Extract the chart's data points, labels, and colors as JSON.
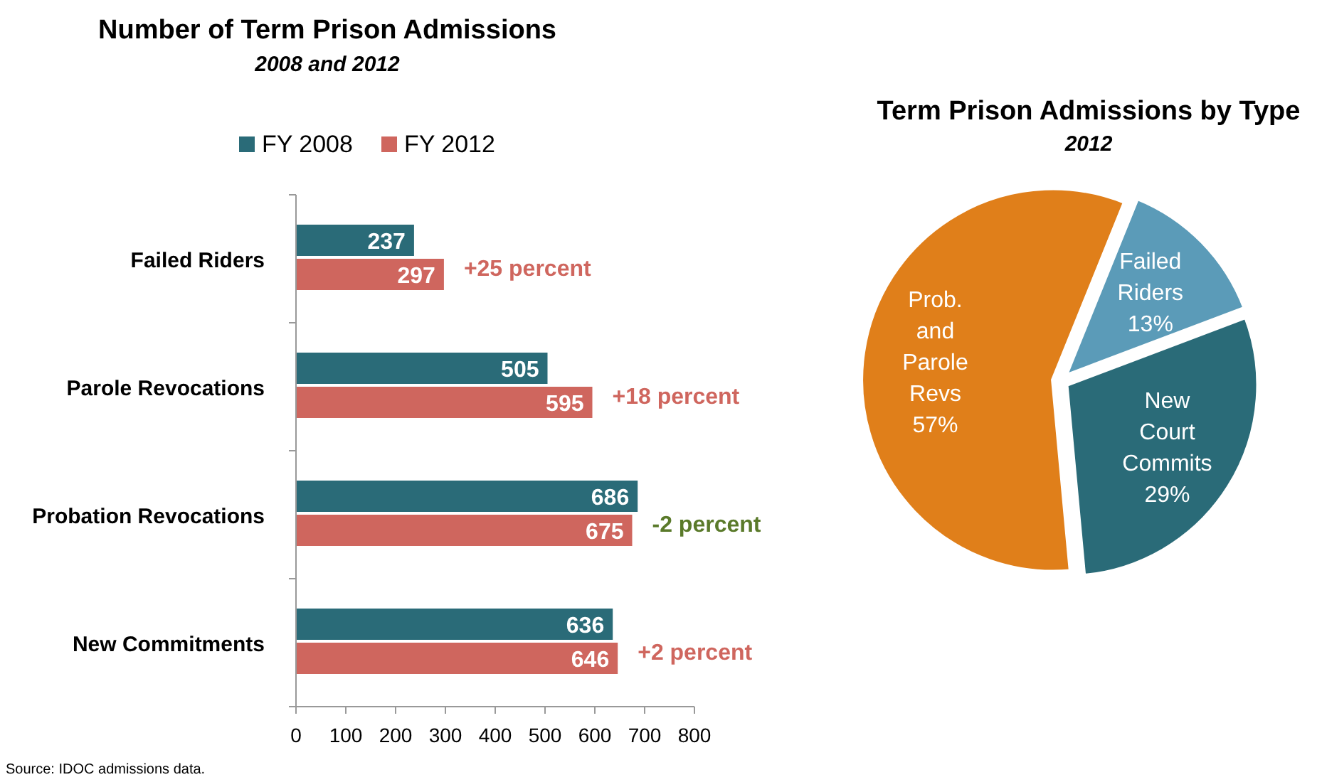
{
  "chart_data": [
    {
      "type": "bar",
      "orientation": "horizontal",
      "title": "Number of Term Prison Admissions",
      "subtitle": "2008 and 2012",
      "categories": [
        "Failed Riders",
        "Parole Revocations",
        "Probation Revocations",
        "New Commitments"
      ],
      "series": [
        {
          "name": "FY 2008",
          "color": "#2a6b78",
          "values": [
            237,
            505,
            686,
            636
          ]
        },
        {
          "name": "FY 2012",
          "color": "#cf665e",
          "values": [
            297,
            595,
            675,
            646
          ]
        }
      ],
      "xlim": [
        0,
        800
      ],
      "xticks": [
        0,
        100,
        200,
        300,
        400,
        500,
        600,
        700,
        800
      ],
      "data_labels": true,
      "legend": "top",
      "grid": false,
      "annotations": [
        {
          "text": "+25 percent",
          "x": 297,
          "y": "Failed Riders"
        },
        {
          "text": "+18 percent",
          "x": 595,
          "y": "Parole Revocations"
        },
        {
          "text": "-2 percent",
          "x": 675,
          "y": "Probation Revocations"
        },
        {
          "text": "+2 percent",
          "x": 646,
          "y": "New Commitments"
        },
        "Source:  IDOC admissions data."
      ]
    },
    {
      "type": "pie",
      "title": "Term Prison Admissions by Type",
      "subtitle": "2012",
      "categories": [
        "Failed Riders",
        "New Court Commits",
        "Prob. and Parole Revs"
      ],
      "values": [
        13,
        29,
        57
      ],
      "colors": [
        "#5b9bb8",
        "#2a6b78",
        "#e07f1a"
      ],
      "value_labels": [
        "13%",
        "29%",
        "57%"
      ]
    }
  ]
}
